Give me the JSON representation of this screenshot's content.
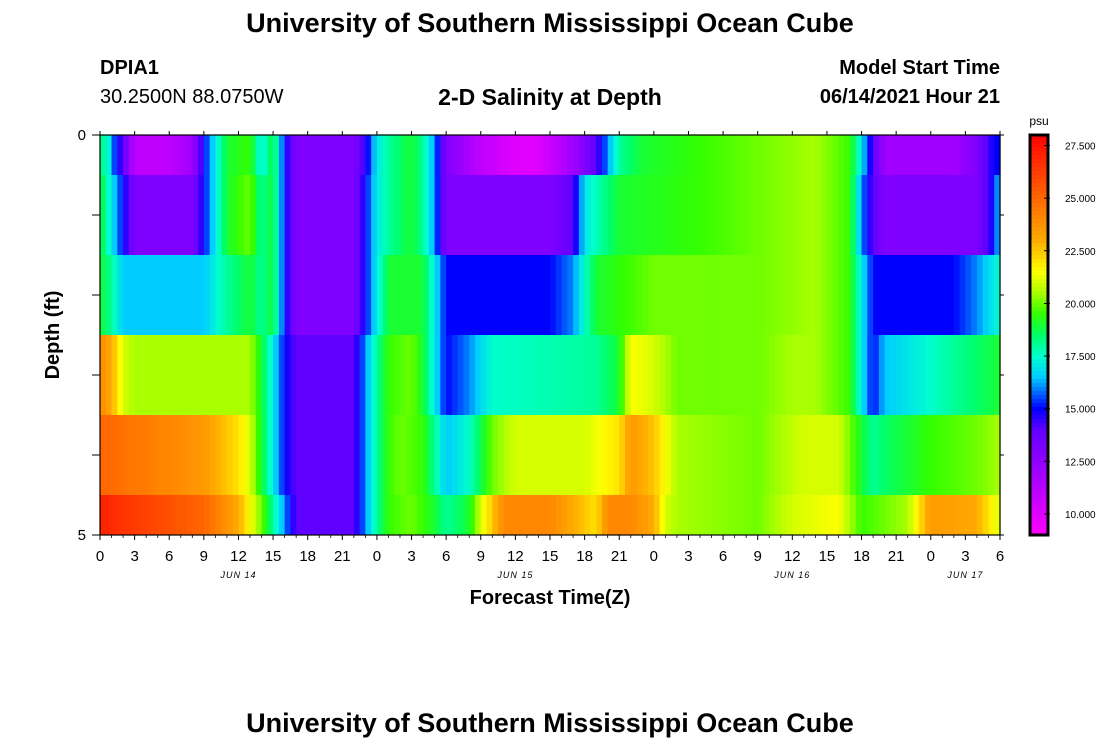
{
  "header": {
    "title": "University of Southern Mississippi Ocean Cube",
    "station": "DPIA1",
    "coordinates": "30.2500N  88.0750W",
    "subtitle": "2-D Salinity at Depth",
    "model_start_label": "Model Start Time",
    "model_start_value": "06/14/2021 Hour 21"
  },
  "footer": {
    "title": "University of Southern Mississippi Ocean Cube"
  },
  "chart_data": {
    "type": "heatmap",
    "xlabel": "Forecast Time(Z)",
    "ylabel": "Depth (ft)",
    "x_tick_labels": [
      "0",
      "3",
      "6",
      "9",
      "12",
      "15",
      "18",
      "21",
      "0",
      "3",
      "6",
      "9",
      "12",
      "15",
      "18",
      "21",
      "0",
      "3",
      "6",
      "9",
      "12",
      "15",
      "18",
      "21",
      "0",
      "3",
      "6"
    ],
    "x_hours_range": [
      0,
      78
    ],
    "day_labels": [
      {
        "label": "JUN 14",
        "hour": 12
      },
      {
        "label": "JUN 15",
        "hour": 36
      },
      {
        "label": "JUN 16",
        "hour": 60
      },
      {
        "label": "JUN 17",
        "hour": 75
      }
    ],
    "y_tick_labels": [
      "0",
      "5"
    ],
    "ylim": [
      0,
      5
    ],
    "depth_layer_edges": [
      0,
      0.5,
      1.5,
      2.5,
      3.5,
      4.5,
      5
    ],
    "colorbar": {
      "unit": "psu",
      "range": [
        9.0,
        28.0
      ],
      "tick_labels": [
        "27.500",
        "25.000",
        "22.500",
        "20.000",
        "17.500",
        "15.000",
        "12.500",
        "10.000"
      ],
      "tick_values": [
        27.5,
        25.0,
        22.5,
        20.0,
        17.5,
        15.0,
        12.5,
        10.0
      ]
    },
    "colormap": [
      {
        "v": 9.0,
        "c": "#ff00ff"
      },
      {
        "v": 12.0,
        "c": "#a000ff"
      },
      {
        "v": 14.0,
        "c": "#6000ff"
      },
      {
        "v": 15.0,
        "c": "#0000ff"
      },
      {
        "v": 16.5,
        "c": "#00ccff"
      },
      {
        "v": 17.5,
        "c": "#00ffcc"
      },
      {
        "v": 18.5,
        "c": "#00ff66"
      },
      {
        "v": 19.5,
        "c": "#33ff00"
      },
      {
        "v": 20.5,
        "c": "#aaff00"
      },
      {
        "v": 21.5,
        "c": "#ffff00"
      },
      {
        "v": 23.0,
        "c": "#ffaa00"
      },
      {
        "v": 25.0,
        "c": "#ff6600"
      },
      {
        "v": 28.0,
        "c": "#ff0000"
      }
    ],
    "series": [
      {
        "depth_ft": 0,
        "points": [
          [
            0,
            17.5
          ],
          [
            0.5,
            18.5
          ],
          [
            1,
            16
          ],
          [
            2,
            14
          ],
          [
            3,
            11
          ],
          [
            6,
            11
          ],
          [
            8,
            12
          ],
          [
            9,
            15
          ],
          [
            10,
            17
          ],
          [
            11,
            19
          ],
          [
            13,
            19.5
          ],
          [
            14,
            17
          ],
          [
            15,
            19
          ],
          [
            16,
            15
          ],
          [
            17,
            13
          ],
          [
            22,
            13
          ],
          [
            23,
            14.5
          ],
          [
            24,
            17
          ],
          [
            25,
            18
          ],
          [
            27,
            19
          ],
          [
            28,
            18
          ],
          [
            29,
            16
          ],
          [
            30,
            13
          ],
          [
            33,
            11
          ],
          [
            36,
            10
          ],
          [
            38,
            10
          ],
          [
            41,
            12
          ],
          [
            43,
            14
          ],
          [
            45,
            18
          ],
          [
            47,
            19
          ],
          [
            52,
            19.5
          ],
          [
            57,
            20
          ],
          [
            62,
            20.5
          ],
          [
            65,
            19.5
          ],
          [
            66,
            17
          ],
          [
            67,
            14
          ],
          [
            68,
            12
          ],
          [
            74,
            12
          ],
          [
            76,
            13
          ],
          [
            77.5,
            15
          ],
          [
            78,
            15
          ]
        ]
      },
      {
        "depth_ft": 1,
        "points": [
          [
            0,
            19
          ],
          [
            1,
            17
          ],
          [
            2,
            15
          ],
          [
            3,
            13
          ],
          [
            8,
            13
          ],
          [
            9,
            15
          ],
          [
            10,
            17
          ],
          [
            11,
            19
          ],
          [
            13,
            20
          ],
          [
            14,
            18
          ],
          [
            15,
            19
          ],
          [
            16,
            15
          ],
          [
            17,
            13
          ],
          [
            22,
            13
          ],
          [
            23,
            15
          ],
          [
            24,
            17
          ],
          [
            25,
            18
          ],
          [
            27,
            19
          ],
          [
            28,
            18
          ],
          [
            29,
            16
          ],
          [
            30,
            13
          ],
          [
            39,
            13
          ],
          [
            41,
            14
          ],
          [
            42,
            17
          ],
          [
            45,
            19
          ],
          [
            52,
            19.5
          ],
          [
            57,
            20
          ],
          [
            62,
            20.5
          ],
          [
            65,
            19.5
          ],
          [
            66,
            16
          ],
          [
            67,
            14
          ],
          [
            68,
            13
          ],
          [
            76,
            13
          ],
          [
            77.5,
            15
          ],
          [
            78,
            17
          ]
        ]
      },
      {
        "depth_ft": 2,
        "points": [
          [
            0,
            19
          ],
          [
            1,
            18
          ],
          [
            2,
            16.5
          ],
          [
            9,
            16.5
          ],
          [
            11,
            18
          ],
          [
            13,
            19
          ],
          [
            14,
            18
          ],
          [
            15,
            19
          ],
          [
            16,
            15
          ],
          [
            17,
            13
          ],
          [
            22,
            13
          ],
          [
            23,
            15
          ],
          [
            24,
            17
          ],
          [
            25,
            19
          ],
          [
            28,
            19
          ],
          [
            29,
            17
          ],
          [
            30,
            15
          ],
          [
            39,
            15
          ],
          [
            41,
            16
          ],
          [
            43,
            19
          ],
          [
            48,
            20
          ],
          [
            57,
            20
          ],
          [
            62,
            20.5
          ],
          [
            65,
            19.5
          ],
          [
            66,
            17
          ],
          [
            67,
            15
          ],
          [
            74,
            15
          ],
          [
            76,
            16
          ],
          [
            78,
            17.5
          ]
        ]
      },
      {
        "depth_ft": 3,
        "points": [
          [
            0,
            24
          ],
          [
            1,
            23
          ],
          [
            2,
            21
          ],
          [
            3,
            20.5
          ],
          [
            13,
            20.5
          ],
          [
            14,
            19
          ],
          [
            15,
            17
          ],
          [
            16,
            15
          ],
          [
            17,
            14
          ],
          [
            22,
            14
          ],
          [
            23,
            16
          ],
          [
            24,
            18
          ],
          [
            25,
            19.5
          ],
          [
            27,
            20
          ],
          [
            28,
            19
          ],
          [
            29,
            17
          ],
          [
            30,
            15
          ],
          [
            32,
            16
          ],
          [
            34,
            17.5
          ],
          [
            43,
            18
          ],
          [
            45,
            19
          ],
          [
            46,
            21.5
          ],
          [
            48,
            21
          ],
          [
            50,
            20
          ],
          [
            57,
            20
          ],
          [
            60,
            20.5
          ],
          [
            62,
            20.5
          ],
          [
            65,
            19.5
          ],
          [
            66,
            17
          ],
          [
            67,
            15
          ],
          [
            68,
            16.5
          ],
          [
            70,
            17
          ],
          [
            74,
            18
          ],
          [
            78,
            19
          ]
        ]
      },
      {
        "depth_ft": 4,
        "points": [
          [
            0,
            25
          ],
          [
            9,
            23.5
          ],
          [
            12,
            22
          ],
          [
            13,
            21
          ],
          [
            14,
            19
          ],
          [
            15,
            17
          ],
          [
            16,
            15
          ],
          [
            17,
            14
          ],
          [
            22,
            14
          ],
          [
            23,
            16
          ],
          [
            24,
            18
          ],
          [
            25,
            19.5
          ],
          [
            26,
            20
          ],
          [
            28,
            19.5
          ],
          [
            29,
            18
          ],
          [
            30,
            16.5
          ],
          [
            32,
            17.5
          ],
          [
            34,
            20
          ],
          [
            36,
            21
          ],
          [
            42,
            21
          ],
          [
            45,
            22
          ],
          [
            46,
            23.5
          ],
          [
            48,
            22.5
          ],
          [
            50,
            20.5
          ],
          [
            57,
            20
          ],
          [
            61,
            21
          ],
          [
            64,
            21
          ],
          [
            65,
            20
          ],
          [
            66,
            19
          ],
          [
            67,
            18
          ],
          [
            68,
            18.5
          ],
          [
            72,
            19.5
          ],
          [
            76,
            20
          ],
          [
            78,
            20.5
          ]
        ]
      },
      {
        "depth_ft": 5,
        "points": [
          [
            0,
            27
          ],
          [
            2,
            26.5
          ],
          [
            9,
            25
          ],
          [
            12,
            23
          ],
          [
            13,
            21.5
          ],
          [
            14,
            20
          ],
          [
            15,
            18
          ],
          [
            16,
            16
          ],
          [
            17,
            14
          ],
          [
            22,
            14
          ],
          [
            23,
            16
          ],
          [
            24,
            18
          ],
          [
            25,
            19.5
          ],
          [
            27,
            20
          ],
          [
            29,
            19
          ],
          [
            30,
            18
          ],
          [
            32,
            19
          ],
          [
            33,
            21
          ],
          [
            34,
            22.5
          ],
          [
            35,
            24
          ],
          [
            39,
            24
          ],
          [
            41,
            23
          ],
          [
            43,
            22
          ],
          [
            44,
            24
          ],
          [
            46,
            24
          ],
          [
            48,
            23
          ],
          [
            49,
            21
          ],
          [
            50,
            20.5
          ],
          [
            57,
            20
          ],
          [
            60,
            21
          ],
          [
            64,
            21.5
          ],
          [
            65,
            20.5
          ],
          [
            66,
            19.5
          ],
          [
            70,
            20.5
          ],
          [
            71,
            22
          ],
          [
            72,
            23.5
          ],
          [
            76,
            23
          ],
          [
            77,
            22
          ],
          [
            78,
            21
          ]
        ]
      }
    ]
  }
}
